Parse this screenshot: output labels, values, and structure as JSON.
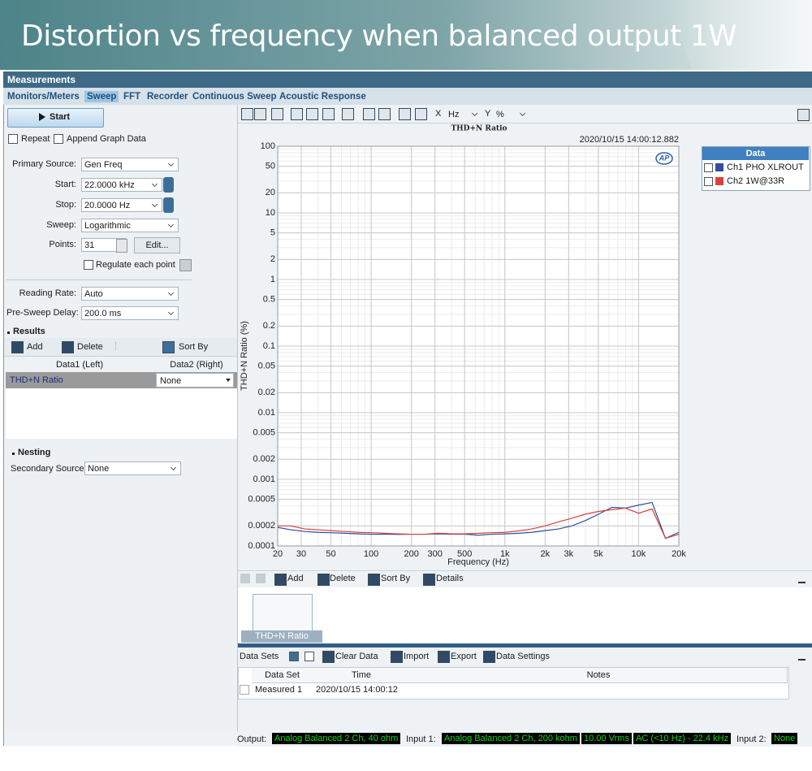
{
  "banner": {
    "title": "Distortion vs frequency when balanced output 1W"
  },
  "app": {
    "title": "Measurements",
    "tabs": [
      "Monitors/Meters",
      "Sweep",
      "FFT",
      "Recorder",
      "Continuous Sweep",
      "Acoustic Response"
    ]
  },
  "sweep_panel": {
    "start_button": "Start",
    "repeat": "Repeat",
    "append": "Append Graph Data",
    "fields": [
      {
        "label": "Primary Source:",
        "value": "Gen Freq"
      },
      {
        "label": "Start:",
        "value": "22.0000 kHz"
      },
      {
        "label": "Stop:",
        "value": "20.0000 Hz"
      },
      {
        "label": "Sweep:",
        "value": "Logarithmic"
      },
      {
        "label": "Points:",
        "value": "31"
      }
    ],
    "edit_button": "Edit...",
    "regulate": "Regulate each point",
    "rate_fields": [
      {
        "label": "Reading Rate:",
        "value": "Auto"
      },
      {
        "label": "Pre-Sweep Delay:",
        "value": "200.0 ms"
      }
    ]
  },
  "results": {
    "title": "Results",
    "toolbar": [
      "Add",
      "Delete",
      "Sort By"
    ],
    "columns": [
      "Data1 (Left)",
      "Data2 (Right)"
    ],
    "rows": [
      [
        "THD+N Ratio",
        "None"
      ]
    ]
  },
  "nesting": {
    "title": "Nesting",
    "label": "Secondary Source:",
    "value": "None"
  },
  "graph_toolbar": {
    "x_label": "X",
    "x_unit": "Hz",
    "y_label": "Y",
    "y_unit": "%"
  },
  "chart_data": {
    "type": "line",
    "title": "THD+N Ratio",
    "timestamp": "2020/10/15 14:00:12.882",
    "logo": "AP",
    "x_label": "Frequency (Hz)",
    "y_label": "THD+N Ratio (%)",
    "x_log": true,
    "y_log": true,
    "grid": true,
    "xlim": [
      20,
      20000
    ],
    "ylim": [
      0.0001,
      100
    ],
    "xticks": [
      20,
      30,
      50,
      100,
      200,
      300,
      500,
      {
        "value": 1000,
        "label": "1k"
      },
      {
        "value": 2000,
        "label": "2k"
      },
      {
        "value": 3000,
        "label": "3k"
      },
      {
        "value": 5000,
        "label": "5k"
      },
      {
        "value": 10000,
        "label": "10k"
      },
      {
        "value": 20000,
        "label": "20k"
      }
    ],
    "yticks": [
      100,
      50,
      20,
      10,
      5,
      2,
      1,
      0.5,
      0.2,
      0.1,
      0.05,
      0.02,
      0.01,
      0.005,
      0.002,
      0.001,
      0.0005,
      0.0002,
      0.0001
    ],
    "legend_title": "Data",
    "x": [
      20,
      25,
      32,
      40,
      50,
      63,
      80,
      100,
      126,
      159,
      200,
      252,
      317,
      399,
      502,
      632,
      796,
      1002,
      1262,
      1589,
      2000,
      2518,
      3170,
      3991,
      5024,
      6325,
      7962,
      10024,
      12619,
      15887,
      20000
    ],
    "series": [
      {
        "name": "Ch1 PHO XLROUT",
        "color": "#2e4f9c",
        "values": [
          0.00019,
          0.000175,
          0.000165,
          0.00016,
          0.000158,
          0.000155,
          0.000152,
          0.00015,
          0.00015,
          0.000149,
          0.00015,
          0.00015,
          0.000152,
          0.00015,
          0.00015,
          0.000145,
          0.00015,
          0.000152,
          0.000155,
          0.00016,
          0.00017,
          0.00018,
          0.0002,
          0.00024,
          0.0003,
          0.00038,
          0.00037,
          0.00041,
          0.00045,
          0.00013,
          0.00016
        ]
      },
      {
        "name": "Ch2  1W@33R",
        "color": "#d9413b",
        "values": [
          0.0002,
          0.0002,
          0.00018,
          0.000175,
          0.00017,
          0.000165,
          0.00016,
          0.000158,
          0.000155,
          0.000152,
          0.00015,
          0.00015,
          0.000155,
          0.000152,
          0.000152,
          0.000155,
          0.000158,
          0.00016,
          0.000168,
          0.00018,
          0.0002,
          0.00023,
          0.00026,
          0.0003,
          0.00033,
          0.00035,
          0.00037,
          0.00031,
          0.00036,
          0.00013,
          0.00015
        ]
      }
    ]
  },
  "graph_list": {
    "toolbar": [
      "Add",
      "Delete",
      "Sort By",
      "Details"
    ],
    "thumbnail": "THD+N Ratio"
  },
  "data_sets": {
    "title": "Data Sets",
    "toolbar": [
      "Clear Data",
      "Import",
      "Export",
      "Data Settings"
    ],
    "columns": [
      "Data Set",
      "Time",
      "Notes"
    ],
    "rows": [
      [
        "Measured 1",
        "2020/10/15 14:00:12",
        ""
      ]
    ]
  },
  "status": {
    "output_label": "Output:",
    "output": "Analog Balanced 2 Ch, 40 ohm",
    "input1_label": "Input 1:",
    "input1": "Analog Balanced 2 Ch, 200 kohm",
    "level": "10.00 Vrms",
    "bandwidth": "AC (<10 Hz) - 22.4 kHz",
    "input2_label": "Input 2:",
    "input2": "None"
  }
}
